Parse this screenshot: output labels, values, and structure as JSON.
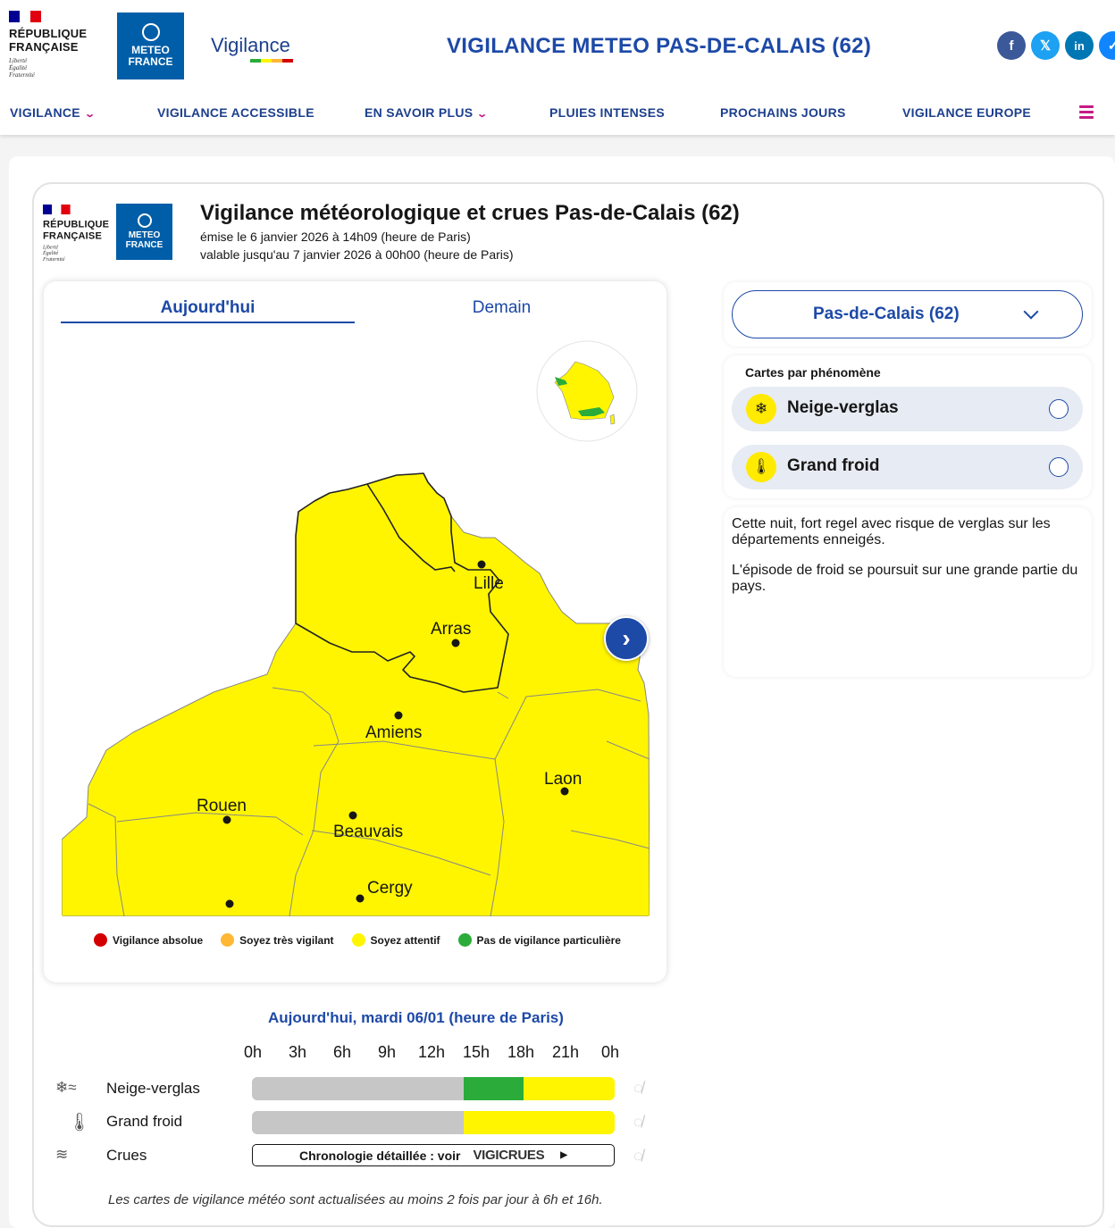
{
  "header": {
    "republique": {
      "line1": "RÉPUBLIQUE",
      "line2": "FRANÇAISE",
      "motto1": "Liberté",
      "motto2": "Égalité",
      "motto3": "Fraternité"
    },
    "meteo_france": {
      "line1": "METEO",
      "line2": "FRANCE"
    },
    "vigilance_logo": "Vigilance",
    "site_title": "VIGILANCE METEO PAS-DE-CALAIS (62)",
    "socials": [
      {
        "label": "f",
        "icon": "facebook-icon",
        "color": "#3b5998"
      },
      {
        "label": "𝕏",
        "icon": "x-icon",
        "color": "#1da1f2"
      },
      {
        "label": "in",
        "icon": "linkedin-icon",
        "color": "#0077b5"
      },
      {
        "label": "✓",
        "icon": "bluesky-icon",
        "color": "#1185fe"
      }
    ]
  },
  "nav": {
    "items": [
      {
        "label": "VIGILANCE",
        "has_dropdown": true
      },
      {
        "label": "VIGILANCE ACCESSIBLE",
        "has_dropdown": false
      },
      {
        "label": "EN SAVOIR PLUS",
        "has_dropdown": true
      },
      {
        "label": "PLUIES INTENSES",
        "has_dropdown": false
      },
      {
        "label": "PROCHAINS JOURS",
        "has_dropdown": false
      },
      {
        "label": "VIGILANCE EUROPE",
        "has_dropdown": false
      }
    ],
    "menu_icon": "hamburger-menu-icon"
  },
  "bulletin": {
    "title": "Vigilance météorologique et crues Pas-de-Calais (62)",
    "emitted": "émise le 6 janvier 2026 à 14h09 (heure de Paris)",
    "valid": "valable jusqu'au 7 janvier 2026 à 00h00 (heure de Paris)"
  },
  "map": {
    "tabs": [
      {
        "label": "Aujourd'hui",
        "active": true
      },
      {
        "label": "Demain",
        "active": false
      }
    ],
    "cities": [
      "Lille",
      "Arras",
      "Amiens",
      "Laon",
      "Rouen",
      "Beauvais",
      "Cergy"
    ],
    "next_icon": "chevron-right-icon",
    "legend": [
      {
        "label": "Vigilance absolue",
        "color": "#d40000"
      },
      {
        "label": "Soyez très vigilant",
        "color": "#ffb833"
      },
      {
        "label": "Soyez attentif",
        "color": "#fff500"
      },
      {
        "label": "Pas de vigilance particulière",
        "color": "#2bac3a"
      }
    ]
  },
  "selector": {
    "value": "Pas-de-Calais (62)"
  },
  "phenomenes": {
    "title": "Cartes par phénomène",
    "items": [
      {
        "label": "Neige-verglas",
        "icon": "snow-ice-icon"
      },
      {
        "label": "Grand froid",
        "icon": "thermometer-icon"
      }
    ]
  },
  "commentary": {
    "p1": "Cette nuit, fort regel avec risque de verglas sur les départements enneigés.",
    "p2": "L'épisode de froid se poursuit sur une grande partie du pays."
  },
  "timeline": {
    "title": "Aujourd'hui, mardi 06/01 (heure de Paris)",
    "hours": [
      "0h",
      "3h",
      "6h",
      "9h",
      "12h",
      "15h",
      "18h",
      "21h",
      "0h"
    ],
    "rows": [
      {
        "label": "Neige-verglas",
        "icon": "snow-ice-icon",
        "segments": [
          {
            "from": 0,
            "to": 14,
            "level": "past"
          },
          {
            "from": 14,
            "to": 18,
            "level": "green"
          },
          {
            "from": 18,
            "to": 24,
            "level": "yellow"
          }
        ]
      },
      {
        "label": "Grand froid",
        "icon": "thermometer-icon",
        "segments": [
          {
            "from": 0,
            "to": 14,
            "level": "past"
          },
          {
            "from": 14,
            "to": 24,
            "level": "yellow"
          }
        ]
      }
    ],
    "crues": {
      "label": "Crues",
      "icon": "waves-icon",
      "link_text": "Chronologie détaillée : voir",
      "brand": "VIGICRUES"
    },
    "level_colors": {
      "past": "#c6c6c6",
      "green": "#2bac3a",
      "yellow": "#fff500"
    },
    "hide_icon": "eye-slash-icon"
  },
  "footnote": "Les cartes de vigilance météo sont actualisées au moins 2 fois par jour à 6h et 16h."
}
